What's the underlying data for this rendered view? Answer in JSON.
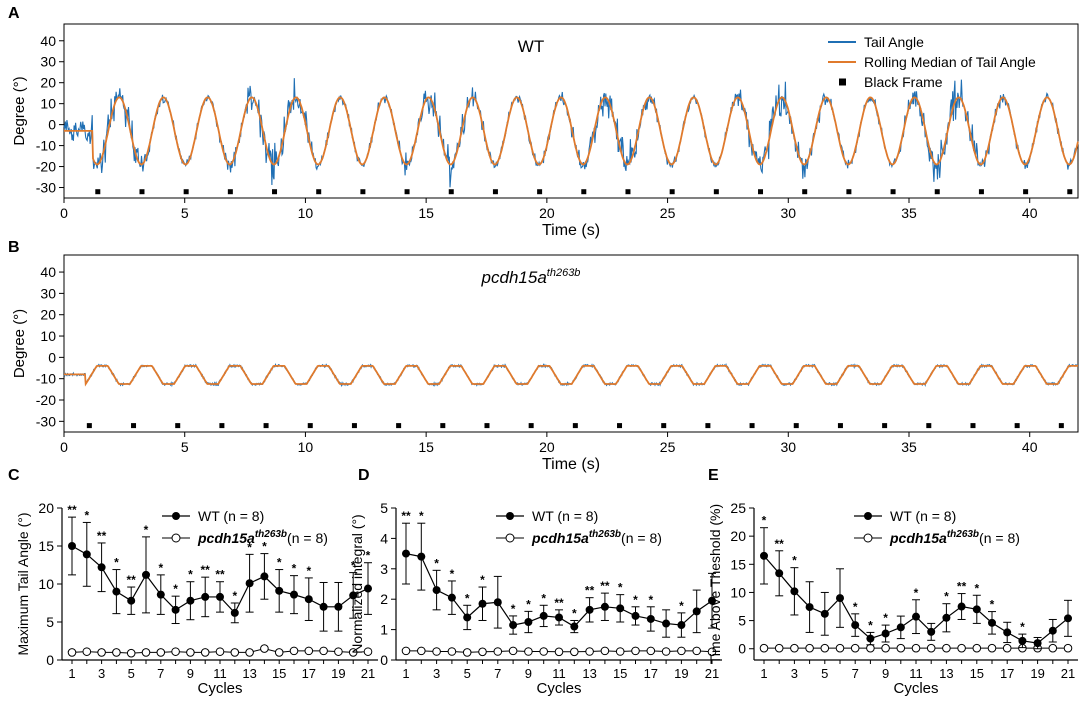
{
  "figure": {
    "panels": [
      {
        "letter": "A"
      },
      {
        "letter": "B"
      },
      {
        "letter": "C"
      },
      {
        "letter": "D"
      },
      {
        "letter": "E"
      }
    ]
  },
  "chart_data": [
    {
      "panel": "A",
      "type": "line",
      "title": "WT",
      "xlabel": "Time (s)",
      "ylabel": "Degree (°)",
      "xlim": [
        0,
        42
      ],
      "ylim": [
        -35,
        48
      ],
      "xticks": [
        0,
        5,
        10,
        15,
        20,
        25,
        30,
        35,
        40
      ],
      "yticks": [
        -30,
        -20,
        -10,
        0,
        10,
        20,
        30,
        40
      ],
      "legend": {
        "position": "top-right",
        "entries": [
          {
            "label": "Tail Angle",
            "color": "#1f6fb4",
            "marker": "line"
          },
          {
            "label": "Rolling Median of Tail Angle",
            "color": "#e07a2c",
            "marker": "line"
          },
          {
            "label": "Black Frame",
            "color": "#000000",
            "marker": "square"
          }
        ]
      },
      "series": [
        {
          "name": "Tail Angle",
          "color": "#1f6fb4",
          "description": "noisy oscillation around rolling median"
        },
        {
          "name": "Rolling Median of Tail Angle",
          "color": "#e07a2c",
          "period_s": 1.83,
          "center": -3,
          "amplitude": 16,
          "start_s": 1.2,
          "initial_value": -3
        }
      ],
      "black_frame": {
        "y": -32,
        "start_s": 1.4,
        "interval_s": 1.83,
        "end_s": 42
      }
    },
    {
      "panel": "B",
      "type": "line",
      "title": "pcdh15a",
      "title_sup": "th263b",
      "xlabel": "Time (s)",
      "ylabel": "Degree (°)",
      "xlim": [
        0,
        42
      ],
      "ylim": [
        -35,
        48
      ],
      "xticks": [
        0,
        5,
        10,
        15,
        20,
        25,
        30,
        35,
        40
      ],
      "yticks": [
        -30,
        -20,
        -10,
        0,
        10,
        20,
        30,
        40
      ],
      "series": [
        {
          "name": "Tail Angle",
          "color": "#1f6fb4"
        },
        {
          "name": "Rolling Median of Tail Angle",
          "color": "#e07a2c",
          "period_s": 1.83,
          "low": -12.5,
          "high": -4,
          "start_s": 0.9,
          "initial_value": -8
        }
      ],
      "black_frame": {
        "y": -32,
        "start_s": 1.05,
        "interval_s": 1.83,
        "end_s": 42
      }
    },
    {
      "panel": "C",
      "type": "line",
      "xlabel": "Cycles",
      "ylabel": "Maximum Tail Angle (°)",
      "ylim": [
        0,
        20
      ],
      "yticks": [
        0,
        5,
        10,
        15,
        20
      ],
      "categories": [
        1,
        2,
        3,
        4,
        5,
        6,
        7,
        8,
        9,
        10,
        11,
        12,
        13,
        14,
        15,
        16,
        17,
        18,
        19,
        20,
        21
      ],
      "xticks": [
        1,
        3,
        5,
        7,
        9,
        11,
        13,
        15,
        17,
        19,
        21
      ],
      "series": [
        {
          "name": "WT (n = 8)",
          "marker": "filled",
          "values": [
            15.0,
            13.9,
            12.2,
            9.0,
            7.8,
            11.2,
            8.6,
            6.6,
            7.8,
            8.3,
            8.3,
            6.2,
            10.1,
            11.0,
            9.1,
            8.6,
            8.0,
            7.0,
            7.0,
            8.5,
            9.4
          ],
          "errors": [
            3.8,
            4.2,
            3.2,
            2.9,
            1.8,
            5.0,
            2.6,
            1.8,
            2.5,
            2.6,
            2.0,
            1.3,
            3.8,
            3.0,
            2.8,
            2.5,
            2.8,
            3.2,
            3.2,
            3.0,
            3.4
          ],
          "significance": [
            "**",
            "*",
            "**",
            "*",
            "**",
            "*",
            "*",
            "*",
            "*",
            "**",
            "**",
            "*",
            "*",
            "*",
            "*",
            "*",
            "*",
            "",
            "",
            "*",
            "*"
          ]
        },
        {
          "name": "pcdh15a",
          "name_sup": "th263b",
          "name_suffix": "(n = 8)",
          "marker": "open",
          "values": [
            1.0,
            1.1,
            1.0,
            1.0,
            0.9,
            1.0,
            1.0,
            1.1,
            1.0,
            1.0,
            1.1,
            1.0,
            1.0,
            1.5,
            1.0,
            1.2,
            1.2,
            1.2,
            1.1,
            1.0,
            1.1
          ]
        }
      ],
      "legend": {
        "position": "top-right"
      }
    },
    {
      "panel": "D",
      "type": "line",
      "xlabel": "Cycles",
      "ylabel": "Normalized integral (°)",
      "ylim": [
        0,
        5
      ],
      "yticks": [
        0,
        1,
        2,
        3,
        4,
        5
      ],
      "categories": [
        1,
        2,
        3,
        4,
        5,
        6,
        7,
        8,
        9,
        10,
        11,
        12,
        13,
        14,
        15,
        16,
        17,
        18,
        19,
        20,
        21
      ],
      "xticks": [
        1,
        3,
        5,
        7,
        9,
        11,
        13,
        15,
        17,
        19,
        21
      ],
      "series": [
        {
          "name": "WT (n = 8)",
          "marker": "filled",
          "values": [
            3.5,
            3.4,
            2.3,
            2.05,
            1.4,
            1.85,
            1.9,
            1.15,
            1.25,
            1.45,
            1.4,
            1.1,
            1.65,
            1.75,
            1.7,
            1.45,
            1.35,
            1.2,
            1.15,
            1.6,
            1.95
          ],
          "errors": [
            1.0,
            1.1,
            0.65,
            0.55,
            0.4,
            0.55,
            0.85,
            0.3,
            0.35,
            0.35,
            0.25,
            0.2,
            0.4,
            0.45,
            0.45,
            0.3,
            0.4,
            0.45,
            0.4,
            0.7,
            0.9
          ],
          "significance": [
            "**",
            "*",
            "*",
            "*",
            "*",
            "*",
            "",
            "*",
            "*",
            "*",
            "**",
            "*",
            "**",
            "**",
            "*",
            "*",
            "*",
            "",
            "*",
            "",
            ""
          ]
        },
        {
          "name": "pcdh15a",
          "name_sup": "th263b",
          "name_suffix": "(n = 8)",
          "marker": "open",
          "values": [
            0.3,
            0.3,
            0.28,
            0.28,
            0.25,
            0.27,
            0.28,
            0.3,
            0.28,
            0.28,
            0.27,
            0.27,
            0.28,
            0.3,
            0.28,
            0.3,
            0.3,
            0.28,
            0.3,
            0.3,
            0.27
          ]
        }
      ],
      "legend": {
        "position": "top-right"
      }
    },
    {
      "panel": "E",
      "type": "line",
      "xlabel": "Cycles",
      "ylabel": "Time Above Theshold (%)",
      "ylim": [
        -2,
        25
      ],
      "yticks": [
        0,
        5,
        10,
        15,
        20,
        25
      ],
      "categories": [
        1,
        2,
        3,
        4,
        5,
        6,
        7,
        8,
        9,
        10,
        11,
        12,
        13,
        14,
        15,
        16,
        17,
        18,
        19,
        20,
        21
      ],
      "xticks": [
        1,
        3,
        5,
        7,
        9,
        11,
        13,
        15,
        17,
        19,
        21
      ],
      "series": [
        {
          "name": "WT (n = 8)",
          "marker": "filled",
          "values": [
            16.5,
            13.4,
            10.2,
            7.4,
            6.2,
            9.0,
            4.2,
            1.8,
            2.7,
            3.8,
            5.7,
            3.0,
            5.5,
            7.5,
            7.0,
            4.6,
            2.9,
            1.4,
            1.0,
            3.2,
            5.4
          ],
          "errors": [
            5.0,
            4.0,
            4.2,
            4.5,
            3.8,
            5.2,
            2.0,
            1.1,
            1.5,
            2.0,
            3.0,
            1.5,
            2.5,
            2.3,
            2.5,
            2.0,
            1.8,
            1.2,
            1.0,
            2.0,
            3.2
          ],
          "significance": [
            "*",
            "**",
            "*",
            "",
            "",
            "",
            "*",
            "*",
            "*",
            "",
            "*",
            "",
            "*",
            "**",
            "*",
            "*",
            "",
            "*",
            "",
            "",
            ""
          ]
        },
        {
          "name": "pcdh15a",
          "name_sup": "th263b",
          "name_suffix": "(n = 8)",
          "marker": "open",
          "values": [
            0.1,
            0.1,
            0.1,
            0.1,
            0.1,
            0.1,
            0.1,
            0.1,
            0.1,
            0.1,
            0.1,
            0.1,
            0.1,
            0.1,
            0.1,
            0.1,
            0.1,
            0.1,
            0.1,
            0.1,
            0.1
          ]
        }
      ],
      "legend": {
        "position": "top-right"
      }
    }
  ]
}
